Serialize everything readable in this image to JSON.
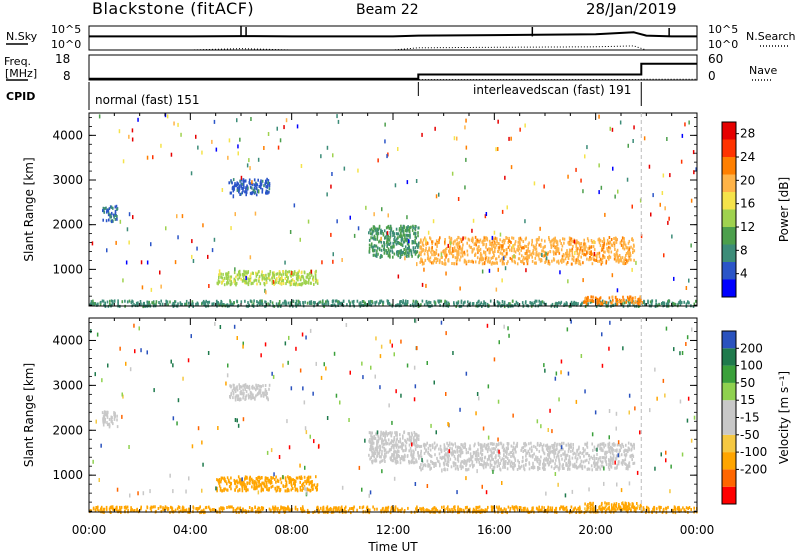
{
  "header": {
    "station": "Blackstone (fitACF)",
    "beam": "Beam 22",
    "date": "28/Jan/2019"
  },
  "side_labels": {
    "nsky": "N.Sky",
    "nsky_ticks": [
      "10^5",
      "10^0"
    ],
    "nsearch": "N.Search",
    "nsearch_ticks": [
      "10^5",
      "10^0"
    ],
    "freq": "Freq.",
    "freq_unit": "[MHz]",
    "freq_ticks": [
      "18",
      "8"
    ],
    "nave": "Nave",
    "nave_ticks": [
      "60",
      "0"
    ],
    "cpid": "CPID"
  },
  "cpid_segments": [
    {
      "label": "normal (fast) 151",
      "start_hour": 0,
      "end_hour": 13.0
    },
    {
      "label": "interleavedscan (fast) 191",
      "start_hour": 13.0,
      "end_hour": 21.8
    }
  ],
  "colors": {
    "power_scale": [
      "#0000ff",
      "#2b55c8",
      "#3c8c78",
      "#4c9f4c",
      "#9fd24f",
      "#f5e34a",
      "#ffb347",
      "#ff7f00",
      "#ff3300",
      "#e60000"
    ],
    "velocity_scale": [
      "#2a52be",
      "#1f7a4c",
      "#3aa03a",
      "#8fd14f",
      "#c8c8c8",
      "#c8c8c8",
      "#f5c842",
      "#ffa500",
      "#ff6600",
      "#ff0000"
    ]
  },
  "chart_data": [
    {
      "type": "line",
      "title": "N.Sky / N.Search",
      "x_axis": {
        "label": "Time UT",
        "range": [
          0,
          24
        ]
      },
      "y_scale": "log",
      "y_ticks": [
        "10^0",
        "10^5"
      ],
      "series": [
        {
          "name": "N.Sky",
          "x": [
            0,
            2,
            4,
            6,
            8,
            10,
            12,
            13,
            16,
            20,
            21.5,
            22,
            23,
            24
          ],
          "y": [
            1000,
            1000,
            1000,
            1200,
            1000,
            1000,
            1000,
            1500,
            2000,
            3000,
            8000,
            1500,
            1000,
            1000
          ]
        },
        {
          "name": "N.Search",
          "x": [
            0,
            2,
            4,
            6,
            8,
            10,
            12,
            13,
            16,
            20,
            21.5,
            22,
            23,
            24
          ],
          "y": [
            1,
            1,
            1,
            2,
            1,
            1,
            1,
            3,
            4,
            5,
            8,
            1,
            1,
            1
          ]
        }
      ]
    },
    {
      "type": "line",
      "title": "Freq. / Nave",
      "x_axis": {
        "range": [
          0,
          24
        ]
      },
      "series": [
        {
          "name": "Freq.",
          "x": [
            0,
            13.0,
            13.0,
            21.8,
            21.8,
            24
          ],
          "y": [
            8.5,
            8.5,
            10.2,
            10.2,
            14.5,
            14.5
          ],
          "ylim": [
            8,
            18
          ]
        },
        {
          "name": "Nave",
          "x": [
            0,
            21.8,
            21.8,
            24
          ],
          "y": [
            1,
            1,
            2,
            2
          ],
          "ylim": [
            0,
            60
          ]
        }
      ]
    },
    {
      "type": "heatmap",
      "title": "Power",
      "x_axis": {
        "label": "Time UT",
        "range": [
          0,
          24
        ],
        "ticks": [
          "00:00",
          "04:00",
          "08:00",
          "12:00",
          "16:00",
          "20:00",
          "00:00"
        ]
      },
      "y_axis": {
        "label": "Slant Range [km]",
        "range": [
          180,
          4500
        ],
        "ticks": [
          1000,
          2000,
          3000,
          4000
        ]
      },
      "colorbar": {
        "label": "Power [dB]",
        "range": [
          0,
          30
        ],
        "ticks": [
          4,
          8,
          12,
          16,
          20,
          24,
          28
        ]
      },
      "regions": [
        {
          "t": [
            0,
            24
          ],
          "r": [
            200,
            330
          ],
          "value": 8
        },
        {
          "t": [
            0.5,
            1.1
          ],
          "r": [
            2100,
            2450
          ],
          "value": 6
        },
        {
          "t": [
            5.5,
            7.1
          ],
          "r": [
            2700,
            3050
          ],
          "value": 5
        },
        {
          "t": [
            5.0,
            9.0
          ],
          "r": [
            680,
            1000
          ],
          "value": 14
        },
        {
          "t": [
            11.0,
            13.0
          ],
          "r": [
            1300,
            2000
          ],
          "value": 9
        },
        {
          "t": [
            13.0,
            21.5
          ],
          "r": [
            1150,
            1750
          ],
          "value": 20
        },
        {
          "t": [
            19.5,
            21.8
          ],
          "r": [
            250,
            420
          ],
          "value": 22
        }
      ]
    },
    {
      "type": "heatmap",
      "title": "Velocity",
      "x_axis": {
        "label": "Time UT",
        "range": [
          0,
          24
        ],
        "ticks": [
          "00:00",
          "04:00",
          "08:00",
          "12:00",
          "16:00",
          "20:00",
          "00:00"
        ]
      },
      "y_axis": {
        "label": "Slant Range [km]",
        "range": [
          180,
          4500
        ],
        "ticks": [
          1000,
          2000,
          3000,
          4000
        ]
      },
      "colorbar": {
        "label": "Velocity [m s⁻¹]",
        "range": [
          -250,
          250
        ],
        "ticks": [
          200,
          100,
          50,
          15,
          -15,
          -50,
          -100,
          -200
        ]
      },
      "regions": [
        {
          "t": [
            0,
            24
          ],
          "r": [
            200,
            330
          ],
          "value": -60
        },
        {
          "t": [
            0.5,
            1.1
          ],
          "r": [
            2100,
            2450
          ],
          "value": 0
        },
        {
          "t": [
            5.5,
            7.1
          ],
          "r": [
            2700,
            3050
          ],
          "value": 0
        },
        {
          "t": [
            5.0,
            9.0
          ],
          "r": [
            680,
            1000
          ],
          "value": -50
        },
        {
          "t": [
            11.0,
            13.0
          ],
          "r": [
            1300,
            2000
          ],
          "value": 0
        },
        {
          "t": [
            13.0,
            21.5
          ],
          "r": [
            1150,
            1750
          ],
          "value": 0
        },
        {
          "t": [
            19.5,
            21.8
          ],
          "r": [
            250,
            420
          ],
          "value": -40
        }
      ]
    }
  ]
}
